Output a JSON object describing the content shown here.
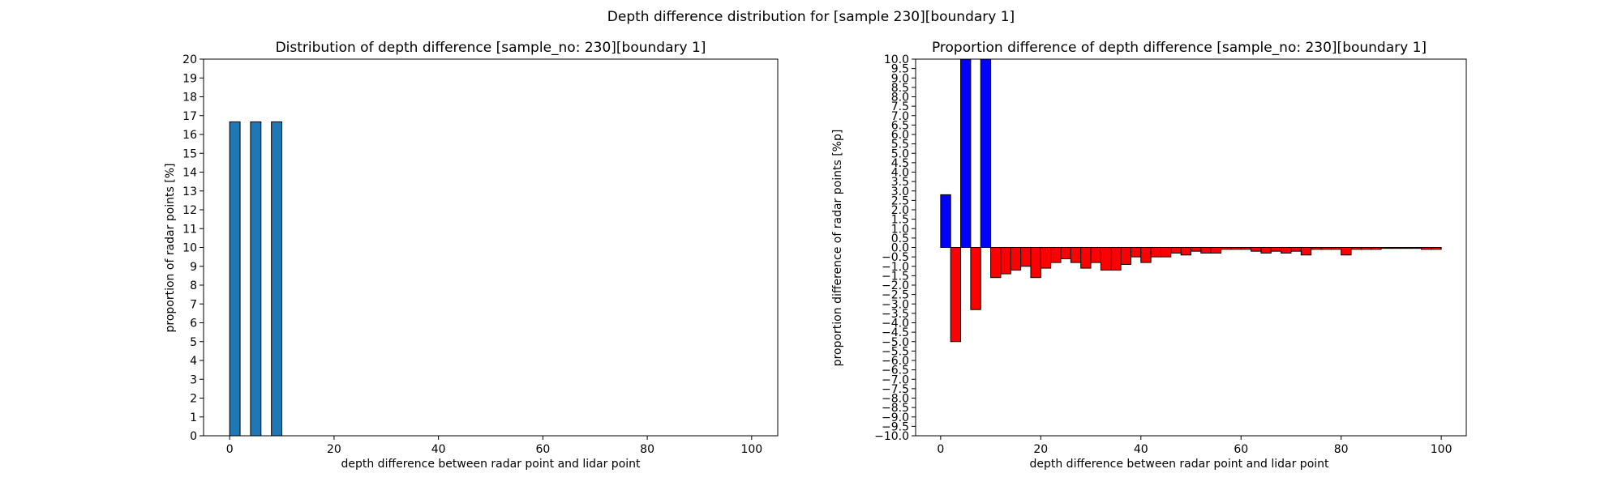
{
  "figure": {
    "suptitle": "Depth difference distribution for [sample 230][boundary 1]"
  },
  "chart_data": [
    {
      "type": "bar",
      "title": "Distribution of depth difference [sample_no: 230][boundary 1]",
      "xlabel": "depth difference between radar point and lidar point",
      "ylabel": "proportion of radar points [%]",
      "xlim": [
        -5,
        105
      ],
      "ylim": [
        0,
        20
      ],
      "xticks": [
        0,
        20,
        40,
        60,
        80,
        100
      ],
      "yticks": [
        0,
        1,
        2,
        3,
        4,
        5,
        6,
        7,
        8,
        9,
        10,
        11,
        12,
        13,
        14,
        15,
        16,
        17,
        18,
        19,
        20
      ],
      "bar_width": 2,
      "colors": {
        "bar": "#1f77b4",
        "edge": "#000000"
      },
      "x": [
        1,
        5,
        9
      ],
      "values": [
        16.67,
        16.67,
        16.67
      ]
    },
    {
      "type": "bar",
      "title": "Proportion difference of depth difference [sample_no: 230][boundary 1]",
      "xlabel": "depth difference between radar point and lidar point",
      "ylabel": "proportion difference of radar points [%p]",
      "xlim": [
        -5,
        105
      ],
      "ylim": [
        -10,
        10
      ],
      "xticks": [
        0,
        20,
        40,
        60,
        80,
        100
      ],
      "yticks": [
        -10.0,
        -9.5,
        -9.0,
        -8.5,
        -8.0,
        -7.5,
        -7.0,
        -6.5,
        -6.0,
        -5.5,
        -5.0,
        -4.5,
        -4.0,
        -3.5,
        -3.0,
        -2.5,
        -2.0,
        -1.5,
        -1.0,
        -0.5,
        0.0,
        0.5,
        1.0,
        1.5,
        2.0,
        2.5,
        3.0,
        3.5,
        4.0,
        4.5,
        5.0,
        5.5,
        6.0,
        6.5,
        7.0,
        7.5,
        8.0,
        8.5,
        9.0,
        9.5,
        10.0
      ],
      "bar_width": 2,
      "colors": {
        "positive": "#0000ff",
        "negative": "#ff0000",
        "edge": "#000000"
      },
      "x": [
        1,
        3,
        5,
        7,
        9,
        11,
        13,
        15,
        17,
        19,
        21,
        23,
        25,
        27,
        29,
        31,
        33,
        35,
        37,
        39,
        41,
        43,
        45,
        47,
        49,
        51,
        53,
        55,
        57,
        59,
        61,
        63,
        65,
        67,
        69,
        71,
        73,
        75,
        77,
        79,
        81,
        83,
        85,
        87,
        89,
        91,
        93,
        95,
        97,
        99
      ],
      "values": [
        2.8,
        -5.0,
        10.0,
        -3.3,
        10.0,
        -1.6,
        -1.4,
        -1.2,
        -1.0,
        -1.6,
        -1.1,
        -0.8,
        -0.6,
        -0.8,
        -1.1,
        -0.8,
        -1.2,
        -1.2,
        -0.9,
        -0.5,
        -0.8,
        -0.5,
        -0.5,
        -0.3,
        -0.4,
        -0.2,
        -0.3,
        -0.3,
        -0.1,
        -0.1,
        -0.1,
        -0.2,
        -0.3,
        -0.2,
        -0.3,
        -0.2,
        -0.4,
        -0.1,
        -0.1,
        -0.1,
        -0.4,
        -0.1,
        -0.1,
        -0.1,
        -0.05,
        -0.05,
        -0.05,
        -0.05,
        -0.1,
        -0.1
      ]
    }
  ]
}
